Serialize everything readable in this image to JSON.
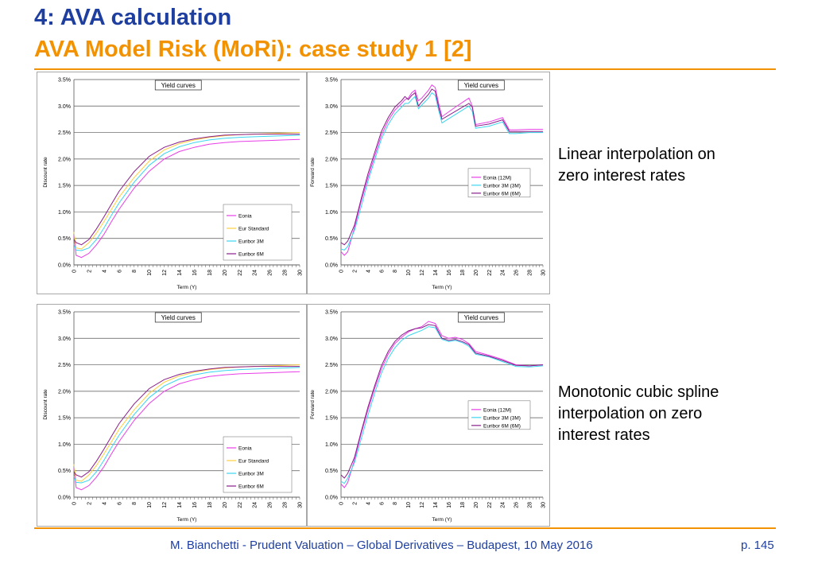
{
  "header": {
    "title": "4: AVA calculation",
    "subtitle": "AVA Model Risk (MoRi): case study 1 [2]"
  },
  "notes": {
    "linear": "Linear interpolation on\nzero interest rates",
    "spline": "Monotonic cubic spline\ninterpolation on zero\ninterest rates"
  },
  "footer": {
    "text": "M. Bianchetti - Prudent Valuation – Global Derivatives – Budapest, 10 May 2016",
    "page": "p. 145"
  },
  "colors": {
    "eonia": "#e83ee8",
    "eur_standard": "#ffd040",
    "euribor3m": "#3ad6f0",
    "euribor6m": "#8a1f8a"
  },
  "chart_data": [
    {
      "id": "c1",
      "type": "line",
      "title": "Yield curves",
      "xlabel": "Term (Y)",
      "ylabel": "Discount rate",
      "xlim": [
        0,
        30
      ],
      "ylim": [
        0,
        3.5
      ],
      "xticks": [
        0,
        2,
        4,
        6,
        8,
        10,
        12,
        14,
        16,
        18,
        20,
        22,
        24,
        26,
        28,
        30
      ],
      "yticks": [
        "0.0%",
        "0.5%",
        "1.0%",
        "1.5%",
        "2.0%",
        "2.5%",
        "3.0%",
        "3.5%"
      ],
      "legend": "bottom-right",
      "grid": true,
      "series": [
        {
          "name": "Eonia",
          "color_key": "eonia",
          "x": [
            0,
            0.3,
            1,
            2,
            3,
            4,
            5,
            6,
            8,
            10,
            12,
            14,
            16,
            18,
            20,
            22,
            24,
            26,
            28,
            30
          ],
          "values": [
            0.55,
            0.18,
            0.14,
            0.22,
            0.38,
            0.58,
            0.82,
            1.05,
            1.45,
            1.77,
            2.0,
            2.14,
            2.22,
            2.28,
            2.31,
            2.33,
            2.34,
            2.35,
            2.36,
            2.37
          ]
        },
        {
          "name": "Eur Standard",
          "color_key": "eur_standard",
          "x": [
            0,
            0.3,
            1,
            2,
            3,
            4,
            5,
            6,
            8,
            10,
            12,
            14,
            16,
            18,
            20,
            22,
            24,
            26,
            28,
            30
          ],
          "values": [
            0.62,
            0.32,
            0.3,
            0.42,
            0.6,
            0.82,
            1.05,
            1.28,
            1.65,
            1.96,
            2.17,
            2.29,
            2.36,
            2.41,
            2.44,
            2.46,
            2.47,
            2.48,
            2.49,
            2.5
          ]
        },
        {
          "name": "Euribor 3M",
          "color_key": "euribor3m",
          "x": [
            0,
            0.3,
            1,
            2,
            3,
            4,
            5,
            6,
            8,
            10,
            12,
            14,
            16,
            18,
            20,
            22,
            24,
            26,
            28,
            30
          ],
          "values": [
            0.4,
            0.28,
            0.27,
            0.32,
            0.48,
            0.7,
            0.94,
            1.17,
            1.56,
            1.88,
            2.1,
            2.23,
            2.31,
            2.36,
            2.39,
            2.41,
            2.42,
            2.43,
            2.44,
            2.45
          ]
        },
        {
          "name": "Euribor 6M",
          "color_key": "euribor6m",
          "x": [
            0,
            0.3,
            1,
            2,
            3,
            4,
            5,
            6,
            8,
            10,
            12,
            14,
            16,
            18,
            20,
            22,
            24,
            26,
            28,
            30
          ],
          "values": [
            0.48,
            0.42,
            0.38,
            0.48,
            0.68,
            0.91,
            1.15,
            1.39,
            1.76,
            2.05,
            2.22,
            2.32,
            2.38,
            2.42,
            2.45,
            2.46,
            2.47,
            2.47,
            2.47,
            2.47
          ]
        }
      ]
    },
    {
      "id": "c2",
      "type": "line",
      "title": "Yield curves",
      "xlabel": "Term (Y)",
      "ylabel": "Forward rate",
      "xlim": [
        0,
        30
      ],
      "ylim": [
        0,
        3.5
      ],
      "xticks": [
        0,
        2,
        4,
        6,
        8,
        10,
        12,
        14,
        16,
        18,
        20,
        22,
        24,
        26,
        28,
        30
      ],
      "yticks": [
        "0.0%",
        "0.5%",
        "1.0%",
        "1.5%",
        "2.0%",
        "2.5%",
        "3.0%",
        "3.5%"
      ],
      "legend": "bottom-right",
      "grid": true,
      "series": [
        {
          "name": "Eonia (12M)",
          "color_key": "eonia",
          "x": [
            0,
            0.5,
            1,
            2,
            3,
            4,
            5,
            6,
            7,
            8,
            9,
            9.5,
            10,
            10.5,
            11,
            11.5,
            12,
            13,
            13.5,
            14,
            14.5,
            15,
            17,
            19,
            19.5,
            20,
            22,
            24,
            25,
            26,
            28,
            30
          ],
          "values": [
            0.25,
            0.18,
            0.25,
            0.7,
            1.2,
            1.65,
            2.05,
            2.45,
            2.72,
            2.92,
            3.05,
            3.12,
            3.15,
            3.25,
            3.3,
            3.1,
            3.15,
            3.3,
            3.4,
            3.35,
            3.05,
            2.8,
            2.98,
            3.15,
            3.0,
            2.65,
            2.7,
            2.78,
            2.55,
            2.55,
            2.56,
            2.56
          ]
        },
        {
          "name": "Euribor 3M (3M)",
          "color_key": "euribor3m",
          "x": [
            0,
            0.5,
            1,
            2,
            3,
            4,
            5,
            6,
            7,
            8,
            9,
            9.5,
            10,
            10.5,
            11,
            11.5,
            12,
            13,
            13.5,
            14,
            14.5,
            15,
            17,
            19,
            19.5,
            20,
            22,
            24,
            25,
            26,
            28,
            30
          ],
          "values": [
            0.3,
            0.28,
            0.35,
            0.65,
            1.1,
            1.58,
            1.98,
            2.38,
            2.65,
            2.85,
            2.98,
            3.05,
            3.05,
            3.12,
            3.18,
            2.95,
            3.02,
            3.15,
            3.25,
            3.2,
            2.92,
            2.68,
            2.84,
            3.0,
            2.9,
            2.58,
            2.62,
            2.7,
            2.48,
            2.48,
            2.5,
            2.5
          ]
        },
        {
          "name": "Euribor 6M (6M)",
          "color_key": "euribor6m",
          "x": [
            0,
            0.5,
            1,
            2,
            3,
            4,
            5,
            6,
            7,
            8,
            9,
            9.5,
            10,
            10.5,
            11,
            11.5,
            12,
            13,
            13.5,
            14,
            14.5,
            15,
            17,
            19,
            19.5,
            20,
            22,
            24,
            25,
            26,
            28,
            30
          ],
          "values": [
            0.42,
            0.38,
            0.45,
            0.75,
            1.25,
            1.72,
            2.12,
            2.52,
            2.78,
            2.98,
            3.1,
            3.18,
            3.12,
            3.2,
            3.25,
            3.0,
            3.08,
            3.22,
            3.32,
            3.28,
            2.98,
            2.75,
            2.9,
            3.05,
            2.98,
            2.62,
            2.66,
            2.74,
            2.52,
            2.52,
            2.52,
            2.52
          ]
        }
      ]
    },
    {
      "id": "c3",
      "type": "line",
      "title": "Yield curves",
      "xlabel": "Term (Y)",
      "ylabel": "Discount rate",
      "xlim": [
        0,
        30
      ],
      "ylim": [
        0,
        3.5
      ],
      "xticks": [
        0,
        2,
        4,
        6,
        8,
        10,
        12,
        14,
        16,
        18,
        20,
        22,
        24,
        26,
        28,
        30
      ],
      "yticks": [
        "0.0%",
        "0.5%",
        "1.0%",
        "1.5%",
        "2.0%",
        "2.5%",
        "3.0%",
        "3.5%"
      ],
      "legend": "bottom-right",
      "grid": true,
      "series": [
        {
          "name": "Eonia",
          "color_key": "eonia",
          "x": [
            0,
            0.3,
            1,
            2,
            3,
            4,
            5,
            6,
            8,
            10,
            12,
            14,
            16,
            18,
            20,
            22,
            24,
            26,
            28,
            30
          ],
          "values": [
            0.55,
            0.18,
            0.14,
            0.22,
            0.38,
            0.58,
            0.82,
            1.05,
            1.45,
            1.77,
            2.0,
            2.14,
            2.22,
            2.28,
            2.31,
            2.33,
            2.34,
            2.35,
            2.36,
            2.37
          ]
        },
        {
          "name": "Eur Standard",
          "color_key": "eur_standard",
          "x": [
            0,
            0.3,
            1,
            2,
            3,
            4,
            5,
            6,
            8,
            10,
            12,
            14,
            16,
            18,
            20,
            22,
            24,
            26,
            28,
            30
          ],
          "values": [
            0.62,
            0.32,
            0.3,
            0.42,
            0.6,
            0.82,
            1.05,
            1.28,
            1.65,
            1.96,
            2.17,
            2.29,
            2.36,
            2.41,
            2.44,
            2.46,
            2.47,
            2.48,
            2.49,
            2.5
          ]
        },
        {
          "name": "Euribor 3M",
          "color_key": "euribor3m",
          "x": [
            0,
            0.3,
            1,
            2,
            3,
            4,
            5,
            6,
            8,
            10,
            12,
            14,
            16,
            18,
            20,
            22,
            24,
            26,
            28,
            30
          ],
          "values": [
            0.4,
            0.28,
            0.27,
            0.32,
            0.48,
            0.7,
            0.94,
            1.17,
            1.56,
            1.88,
            2.1,
            2.23,
            2.31,
            2.36,
            2.39,
            2.41,
            2.42,
            2.43,
            2.44,
            2.45
          ]
        },
        {
          "name": "Euribor 6M",
          "color_key": "euribor6m",
          "x": [
            0,
            0.3,
            1,
            2,
            3,
            4,
            5,
            6,
            8,
            10,
            12,
            14,
            16,
            18,
            20,
            22,
            24,
            26,
            28,
            30
          ],
          "values": [
            0.48,
            0.42,
            0.38,
            0.48,
            0.68,
            0.91,
            1.15,
            1.39,
            1.76,
            2.05,
            2.22,
            2.32,
            2.38,
            2.42,
            2.45,
            2.46,
            2.47,
            2.47,
            2.47,
            2.47
          ]
        }
      ]
    },
    {
      "id": "c4",
      "type": "line",
      "title": "Yield curves",
      "xlabel": "Term (Y)",
      "ylabel": "Forward rate",
      "xlim": [
        0,
        30
      ],
      "ylim": [
        0,
        3.5
      ],
      "xticks": [
        0,
        2,
        4,
        6,
        8,
        10,
        12,
        14,
        16,
        18,
        20,
        22,
        24,
        26,
        28,
        30
      ],
      "yticks": [
        "0.0%",
        "0.5%",
        "1.0%",
        "1.5%",
        "2.0%",
        "2.5%",
        "3.0%",
        "3.5%"
      ],
      "legend": "bottom-right",
      "grid": true,
      "series": [
        {
          "name": "Eonia (12M)",
          "color_key": "eonia",
          "x": [
            0,
            0.5,
            1,
            2,
            3,
            4,
            5,
            6,
            7,
            8,
            9,
            10,
            11,
            12,
            13,
            14,
            15,
            16,
            17,
            18,
            19,
            20,
            22,
            24,
            26,
            28,
            30
          ],
          "values": [
            0.25,
            0.18,
            0.28,
            0.7,
            1.2,
            1.65,
            2.05,
            2.42,
            2.7,
            2.9,
            3.02,
            3.12,
            3.18,
            3.22,
            3.32,
            3.28,
            3.05,
            3.0,
            3.02,
            2.98,
            2.9,
            2.75,
            2.68,
            2.6,
            2.5,
            2.48,
            2.5
          ]
        },
        {
          "name": "Euribor 3M (3M)",
          "color_key": "euribor3m",
          "x": [
            0,
            0.5,
            1,
            2,
            3,
            4,
            5,
            6,
            7,
            8,
            9,
            10,
            11,
            12,
            13,
            14,
            15,
            16,
            17,
            18,
            19,
            20,
            22,
            24,
            26,
            28,
            30
          ],
          "values": [
            0.3,
            0.26,
            0.36,
            0.65,
            1.1,
            1.55,
            1.96,
            2.34,
            2.62,
            2.82,
            2.96,
            3.05,
            3.1,
            3.15,
            3.22,
            3.2,
            2.98,
            2.94,
            2.96,
            2.92,
            2.85,
            2.7,
            2.65,
            2.56,
            2.47,
            2.46,
            2.48
          ]
        },
        {
          "name": "Euribor 6M (6M)",
          "color_key": "euribor6m",
          "x": [
            0,
            0.5,
            1,
            2,
            3,
            4,
            5,
            6,
            7,
            8,
            9,
            10,
            11,
            12,
            13,
            14,
            15,
            16,
            17,
            18,
            19,
            20,
            22,
            24,
            26,
            28,
            30
          ],
          "values": [
            0.42,
            0.36,
            0.45,
            0.75,
            1.24,
            1.7,
            2.1,
            2.48,
            2.75,
            2.94,
            3.06,
            3.14,
            3.18,
            3.2,
            3.26,
            3.24,
            3.0,
            2.96,
            2.98,
            2.94,
            2.88,
            2.72,
            2.66,
            2.58,
            2.49,
            2.48,
            2.5
          ]
        }
      ]
    }
  ]
}
